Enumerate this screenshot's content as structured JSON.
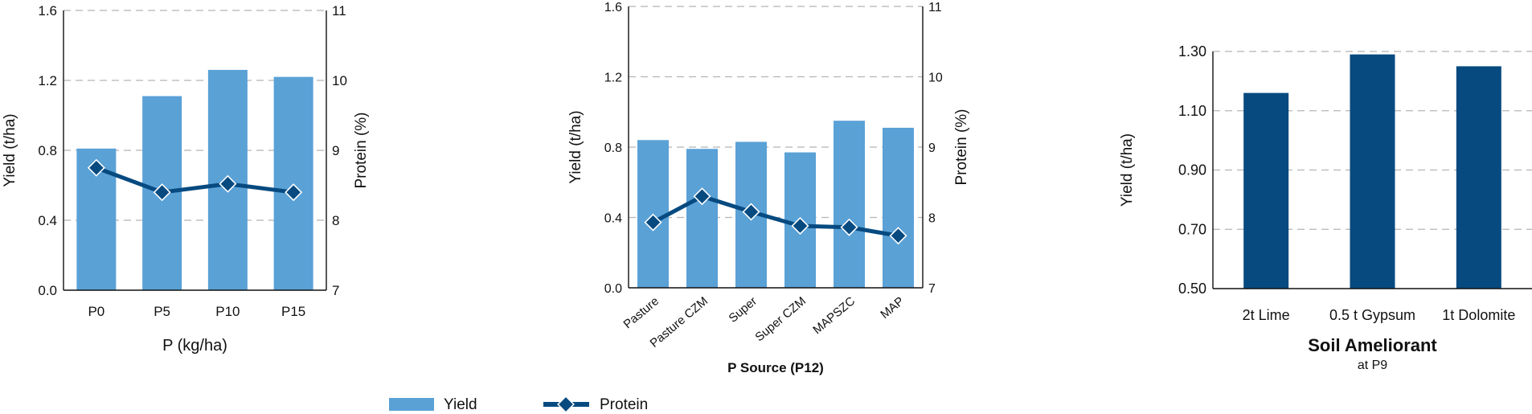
{
  "colors": {
    "bar_light": "#5aa1d6",
    "bar_dark": "#064a80",
    "line": "#064a80",
    "grid": "#b5b5b5",
    "axis": "#111111"
  },
  "legend": {
    "yield_label": "Yield",
    "protein_label": "Protein"
  },
  "chart_data": [
    {
      "type": "bar+line",
      "categories": [
        "P0",
        "P5",
        "P10",
        "P15"
      ],
      "series": [
        {
          "name": "Yield",
          "type": "bar",
          "axis": "left",
          "values": [
            0.81,
            1.11,
            1.26,
            1.22
          ]
        },
        {
          "name": "Protein",
          "type": "line",
          "axis": "right",
          "values": [
            8.75,
            8.4,
            8.52,
            8.4
          ]
        }
      ],
      "xlabel": "P (kg/ha)",
      "ylabel": "Yield (t/ha)",
      "y2label": "Protein (%)",
      "ylim": [
        0,
        1.6
      ],
      "yticks": [
        "0.0",
        "0.4",
        "0.8",
        "1.2",
        "1.6"
      ],
      "y2lim": [
        7,
        11
      ],
      "y2ticks": [
        "7",
        "8",
        "9",
        "10",
        "11"
      ],
      "grid": true
    },
    {
      "type": "bar+line",
      "categories": [
        "Pasture",
        "Pasture CZM",
        "Super",
        "Super CZM",
        "MAPSZC",
        "MAP"
      ],
      "series": [
        {
          "name": "Yield",
          "type": "bar",
          "axis": "left",
          "values": [
            0.84,
            0.79,
            0.83,
            0.77,
            0.95,
            0.91
          ]
        },
        {
          "name": "Protein",
          "type": "line",
          "axis": "right",
          "values": [
            7.93,
            8.3,
            8.08,
            7.88,
            7.86,
            7.74
          ]
        }
      ],
      "xlabel": "P Source (P12)",
      "ylabel": "Yield (t/ha)",
      "y2label": "Protein (%)",
      "ylim": [
        0,
        1.6
      ],
      "yticks": [
        "0.0",
        "0.4",
        "0.8",
        "1.2",
        "1.6"
      ],
      "y2lim": [
        7,
        11
      ],
      "y2ticks": [
        "7",
        "8",
        "9",
        "10",
        "11"
      ],
      "grid": true
    },
    {
      "type": "bar",
      "categories": [
        "2t Lime",
        "0.5 t Gypsum",
        "1t Dolomite"
      ],
      "series": [
        {
          "name": "Yield",
          "type": "bar",
          "axis": "left",
          "values": [
            1.16,
            1.29,
            1.25
          ]
        }
      ],
      "xlabel": "Soil Ameliorant",
      "xsublabel": "at P9",
      "ylabel": "Yield (t/ha)",
      "ylim": [
        0.5,
        1.3
      ],
      "yticks": [
        "0.50",
        "0.70",
        "0.90",
        "1.10",
        "1.30"
      ],
      "grid": true
    }
  ]
}
